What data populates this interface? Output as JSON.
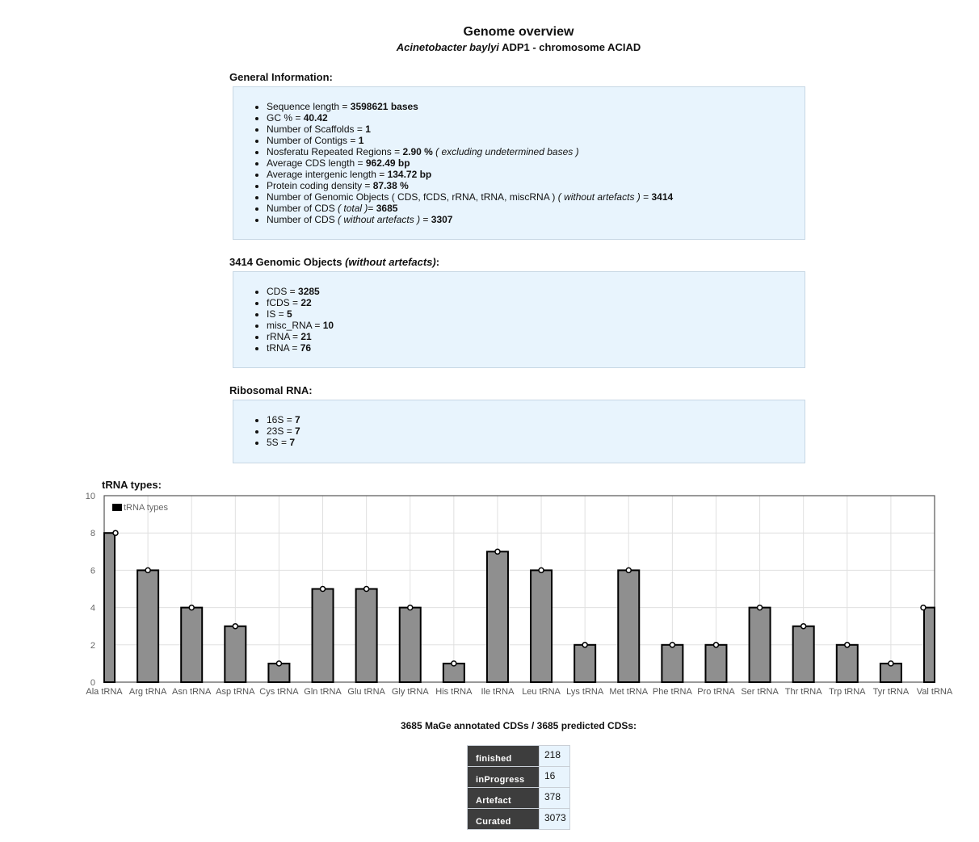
{
  "header": {
    "title": "Genome overview",
    "organism": "Acinetobacter baylyi",
    "strain_rest": "ADP1 - chromosome ACIAD"
  },
  "general": {
    "heading": "General Information:",
    "sequence_length": "3598621 bases",
    "gc": "40.42",
    "scaffolds": "1",
    "contigs": "1",
    "repeated_regions": "2.90 %",
    "repeated_note": "( excluding undetermined bases )",
    "avg_cds_length": "962.49 bp",
    "avg_intergenic_length": "134.72 bp",
    "protein_coding_density": "87.38 %",
    "genomic_objects": "3414",
    "cds_total": "3685",
    "cds_without_artefacts": "3307"
  },
  "objects": {
    "count": "3414",
    "items": [
      {
        "label": "CDS",
        "value": "3285"
      },
      {
        "label": "fCDS",
        "value": "22"
      },
      {
        "label": "IS",
        "value": "5"
      },
      {
        "label": "misc_RNA",
        "value": "10"
      },
      {
        "label": "rRNA",
        "value": "21"
      },
      {
        "label": "tRNA",
        "value": "76"
      }
    ]
  },
  "ribosomal": {
    "heading": "Ribosomal RNA:",
    "items": [
      {
        "label": "16S",
        "value": "7"
      },
      {
        "label": "23S",
        "value": "7"
      },
      {
        "label": "5S",
        "value": "7"
      }
    ]
  },
  "chart_data": {
    "type": "bar",
    "title": "tRNA types:",
    "legend": "tRNA types",
    "legend_position": "top-left",
    "grid": true,
    "ylim": [
      0,
      10
    ],
    "yticks": [
      0,
      2,
      4,
      6,
      8,
      10
    ],
    "categories": [
      "Ala tRNA",
      "Arg tRNA",
      "Asn tRNA",
      "Asp tRNA",
      "Cys tRNA",
      "Gln tRNA",
      "Glu tRNA",
      "Gly tRNA",
      "His tRNA",
      "Ile tRNA",
      "Leu tRNA",
      "Lys tRNA",
      "Met tRNA",
      "Phe tRNA",
      "Pro tRNA",
      "Ser tRNA",
      "Thr tRNA",
      "Trp tRNA",
      "Tyr tRNA",
      "Val tRNA"
    ],
    "values": [
      8,
      6,
      4,
      3,
      1,
      5,
      5,
      4,
      1,
      7,
      6,
      2,
      6,
      2,
      2,
      4,
      3,
      2,
      1,
      4
    ],
    "colors": {
      "bar": "#8f8f8f",
      "stroke": "#000000"
    }
  },
  "cds": {
    "heading": "3685 MaGe annotated CDSs / 3685 predicted CDSs:",
    "status": [
      {
        "name": "finished",
        "value": "218"
      },
      {
        "name": "inProgress",
        "value": "16"
      },
      {
        "name": "Artefact",
        "value": "378"
      },
      {
        "name": "Curated",
        "value": "3073"
      }
    ]
  }
}
